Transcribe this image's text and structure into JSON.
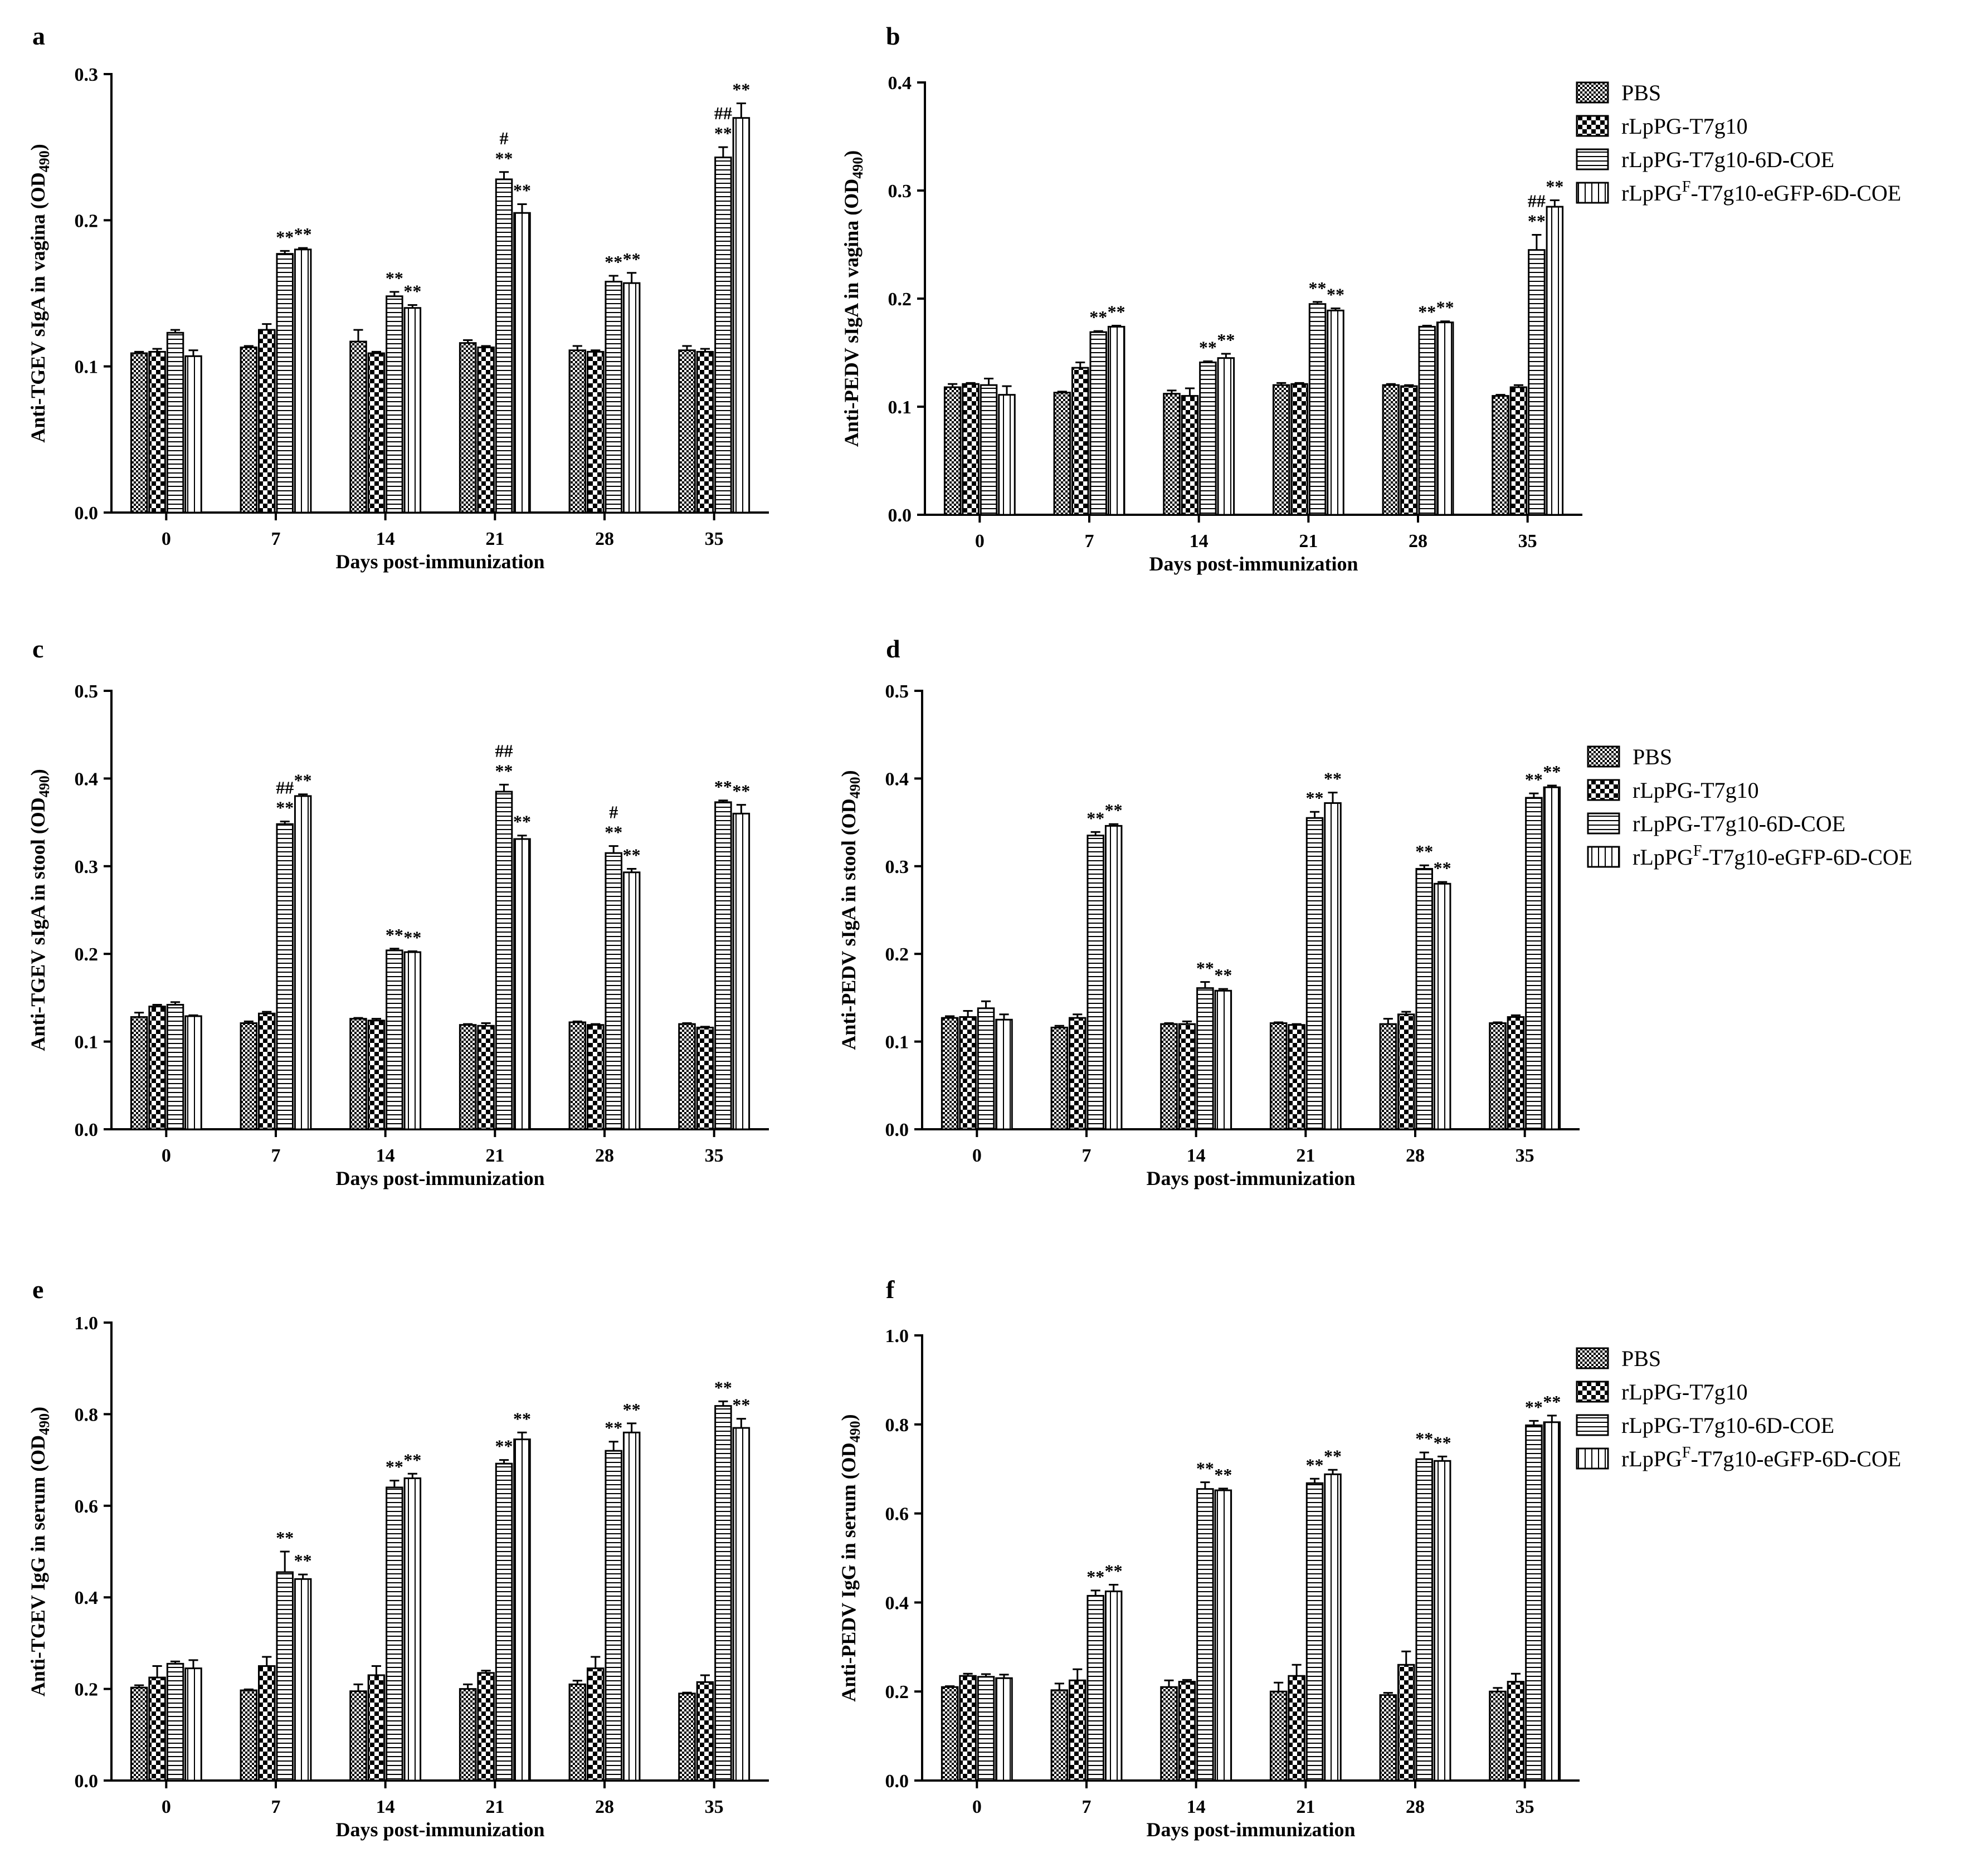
{
  "colors": {
    "axis": "#000000",
    "bar_fill": "#ffffff",
    "bar_stroke": "#000000"
  },
  "legend": {
    "entries": [
      {
        "label": "PBS",
        "pattern": "fine-checker"
      },
      {
        "label": "rLpPG-T7g10",
        "pattern": "coarse-checker"
      },
      {
        "label": "rLpPG-T7g10-6D-COE",
        "pattern": "horizontal-lines"
      },
      {
        "label_main": "rLpPG",
        "label_sup": "F",
        "label_rest": "-T7g10-eGFP-6D-COE",
        "pattern": "vertical-lines"
      }
    ]
  },
  "chart_data": [
    {
      "panel": "a",
      "type": "bar",
      "ylabel_main": "Anti-TGEV sIgA in vagina (OD",
      "ylabel_sub": "490",
      "ylabel_close": ")",
      "xlabel": "Days post-immunization",
      "categories": [
        "0",
        "7",
        "14",
        "21",
        "28",
        "35"
      ],
      "ylim": [
        0,
        0.3
      ],
      "yticks": [
        0.0,
        0.1,
        0.2,
        0.3
      ],
      "ytick_labels": [
        "0.0",
        "0.1",
        "0.2",
        "0.3"
      ],
      "show_legend": false,
      "series": [
        {
          "values": [
            0.109,
            0.113,
            0.117,
            0.116,
            0.111,
            0.111
          ],
          "errors": [
            0.001,
            0.001,
            0.008,
            0.002,
            0.003,
            0.003
          ]
        },
        {
          "values": [
            0.11,
            0.125,
            0.109,
            0.113,
            0.11,
            0.11
          ],
          "errors": [
            0.002,
            0.004,
            0.001,
            0.001,
            0.001,
            0.002
          ]
        },
        {
          "values": [
            0.123,
            0.177,
            0.148,
            0.228,
            0.158,
            0.243
          ],
          "errors": [
            0.002,
            0.002,
            0.003,
            0.005,
            0.004,
            0.007
          ]
        },
        {
          "values": [
            0.107,
            0.18,
            0.14,
            0.205,
            0.157,
            0.27
          ],
          "errors": [
            0.004,
            0.001,
            0.002,
            0.006,
            0.007,
            0.01
          ]
        }
      ],
      "annotations": [
        {
          "category": 1,
          "series": 2,
          "lines": [
            "**"
          ]
        },
        {
          "category": 1,
          "series": 3,
          "lines": [
            "**"
          ]
        },
        {
          "category": 2,
          "series": 2,
          "lines": [
            "**"
          ]
        },
        {
          "category": 2,
          "series": 3,
          "lines": [
            "**"
          ]
        },
        {
          "category": 3,
          "series": 2,
          "lines": [
            "#",
            "**"
          ]
        },
        {
          "category": 3,
          "series": 3,
          "lines": [
            "**"
          ]
        },
        {
          "category": 4,
          "series": 2,
          "lines": [
            "**"
          ]
        },
        {
          "category": 4,
          "series": 3,
          "lines": [
            "**"
          ]
        },
        {
          "category": 5,
          "series": 2,
          "lines": [
            "##",
            "**"
          ]
        },
        {
          "category": 5,
          "series": 3,
          "lines": [
            "**"
          ]
        }
      ]
    },
    {
      "panel": "b",
      "type": "bar",
      "ylabel_main": "Anti-PEDV sIgA in vagina (OD",
      "ylabel_sub": "490",
      "ylabel_close": ")",
      "xlabel": "Days post-immunization",
      "categories": [
        "0",
        "7",
        "14",
        "21",
        "28",
        "35"
      ],
      "ylim": [
        0,
        0.4
      ],
      "yticks": [
        0.0,
        0.1,
        0.2,
        0.3,
        0.4
      ],
      "ytick_labels": [
        "0.0",
        "0.1",
        "0.2",
        "0.3",
        "0.4"
      ],
      "show_legend": true,
      "legend_position": "top-right",
      "series": [
        {
          "values": [
            0.118,
            0.113,
            0.112,
            0.12,
            0.12,
            0.11
          ],
          "errors": [
            0.003,
            0.001,
            0.003,
            0.002,
            0.001,
            0.001
          ]
        },
        {
          "values": [
            0.121,
            0.136,
            0.11,
            0.121,
            0.119,
            0.118
          ],
          "errors": [
            0.001,
            0.005,
            0.007,
            0.001,
            0.001,
            0.002
          ]
        },
        {
          "values": [
            0.12,
            0.169,
            0.141,
            0.195,
            0.174,
            0.245
          ],
          "errors": [
            0.006,
            0.001,
            0.001,
            0.002,
            0.001,
            0.014
          ]
        },
        {
          "values": [
            0.111,
            0.174,
            0.145,
            0.189,
            0.178,
            0.285
          ],
          "errors": [
            0.008,
            0.001,
            0.004,
            0.002,
            0.001,
            0.006
          ]
        }
      ],
      "annotations": [
        {
          "category": 1,
          "series": 2,
          "lines": [
            "**"
          ]
        },
        {
          "category": 1,
          "series": 3,
          "lines": [
            "**"
          ]
        },
        {
          "category": 2,
          "series": 2,
          "lines": [
            "**"
          ]
        },
        {
          "category": 2,
          "series": 3,
          "lines": [
            "**"
          ]
        },
        {
          "category": 3,
          "series": 2,
          "lines": [
            "**"
          ]
        },
        {
          "category": 3,
          "series": 3,
          "lines": [
            "**"
          ]
        },
        {
          "category": 4,
          "series": 2,
          "lines": [
            "**"
          ]
        },
        {
          "category": 4,
          "series": 3,
          "lines": [
            "**"
          ]
        },
        {
          "category": 5,
          "series": 2,
          "lines": [
            "##",
            "**"
          ]
        },
        {
          "category": 5,
          "series": 3,
          "lines": [
            "**"
          ]
        }
      ]
    },
    {
      "panel": "c",
      "type": "bar",
      "ylabel_main": "Anti-TGEV sIgA in stool (OD",
      "ylabel_sub": "490",
      "ylabel_close": ")",
      "xlabel": "Days post-immunization",
      "categories": [
        "0",
        "7",
        "14",
        "21",
        "28",
        "35"
      ],
      "ylim": [
        0,
        0.5
      ],
      "yticks": [
        0.0,
        0.1,
        0.2,
        0.3,
        0.4,
        0.5
      ],
      "ytick_labels": [
        "0.0",
        "0.1",
        "0.2",
        "0.3",
        "0.4",
        "0.5"
      ],
      "show_legend": false,
      "series": [
        {
          "values": [
            0.128,
            0.121,
            0.126,
            0.119,
            0.122,
            0.12
          ],
          "errors": [
            0.005,
            0.002,
            0.001,
            0.001,
            0.001,
            0.001
          ]
        },
        {
          "values": [
            0.14,
            0.132,
            0.124,
            0.118,
            0.119,
            0.116
          ],
          "errors": [
            0.002,
            0.002,
            0.002,
            0.003,
            0.001,
            0.001
          ]
        },
        {
          "values": [
            0.142,
            0.348,
            0.204,
            0.385,
            0.315,
            0.373
          ],
          "errors": [
            0.003,
            0.003,
            0.002,
            0.008,
            0.008,
            0.002
          ]
        },
        {
          "values": [
            0.129,
            0.38,
            0.202,
            0.331,
            0.293,
            0.36
          ],
          "errors": [
            0.001,
            0.002,
            0.001,
            0.004,
            0.004,
            0.01
          ]
        }
      ],
      "annotations": [
        {
          "category": 1,
          "series": 2,
          "lines": [
            "##",
            "**"
          ]
        },
        {
          "category": 1,
          "series": 3,
          "lines": [
            "**"
          ]
        },
        {
          "category": 2,
          "series": 2,
          "lines": [
            "**"
          ]
        },
        {
          "category": 2,
          "series": 3,
          "lines": [
            "**"
          ]
        },
        {
          "category": 3,
          "series": 2,
          "lines": [
            "##",
            "**"
          ]
        },
        {
          "category": 3,
          "series": 3,
          "lines": [
            "**"
          ]
        },
        {
          "category": 4,
          "series": 2,
          "lines": [
            "#",
            "**"
          ]
        },
        {
          "category": 4,
          "series": 3,
          "lines": [
            "**"
          ]
        },
        {
          "category": 5,
          "series": 2,
          "lines": [
            "**"
          ]
        },
        {
          "category": 5,
          "series": 3,
          "lines": [
            "**"
          ]
        }
      ]
    },
    {
      "panel": "d",
      "type": "bar",
      "ylabel_main": "Anti-PEDV sIgA in stool (OD",
      "ylabel_sub": "490",
      "ylabel_close": ")",
      "xlabel": "Days post-immunization",
      "categories": [
        "0",
        "7",
        "14",
        "21",
        "28",
        "35"
      ],
      "ylim": [
        0,
        0.5
      ],
      "yticks": [
        0.0,
        0.1,
        0.2,
        0.3,
        0.4,
        0.5
      ],
      "ytick_labels": [
        "0.0",
        "0.1",
        "0.2",
        "0.3",
        "0.4",
        "0.5"
      ],
      "show_legend": true,
      "legend_position": "top-right",
      "series": [
        {
          "values": [
            0.127,
            0.116,
            0.12,
            0.121,
            0.12,
            0.121
          ],
          "errors": [
            0.002,
            0.002,
            0.001,
            0.001,
            0.006,
            0.001
          ]
        },
        {
          "values": [
            0.128,
            0.127,
            0.12,
            0.119,
            0.131,
            0.128
          ],
          "errors": [
            0.007,
            0.004,
            0.003,
            0.001,
            0.003,
            0.002
          ]
        },
        {
          "values": [
            0.138,
            0.335,
            0.161,
            0.355,
            0.297,
            0.378
          ],
          "errors": [
            0.008,
            0.004,
            0.007,
            0.007,
            0.004,
            0.005
          ]
        },
        {
          "values": [
            0.125,
            0.346,
            0.158,
            0.372,
            0.28,
            0.39
          ],
          "errors": [
            0.006,
            0.002,
            0.002,
            0.012,
            0.002,
            0.002
          ]
        }
      ],
      "annotations": [
        {
          "category": 1,
          "series": 2,
          "lines": [
            "**"
          ]
        },
        {
          "category": 1,
          "series": 3,
          "lines": [
            "**"
          ]
        },
        {
          "category": 2,
          "series": 2,
          "lines": [
            "**"
          ]
        },
        {
          "category": 2,
          "series": 3,
          "lines": [
            "**"
          ]
        },
        {
          "category": 3,
          "series": 2,
          "lines": [
            "**"
          ]
        },
        {
          "category": 3,
          "series": 3,
          "lines": [
            "**"
          ]
        },
        {
          "category": 4,
          "series": 2,
          "lines": [
            "**"
          ]
        },
        {
          "category": 4,
          "series": 3,
          "lines": [
            "**"
          ]
        },
        {
          "category": 5,
          "series": 2,
          "lines": [
            "**"
          ]
        },
        {
          "category": 5,
          "series": 3,
          "lines": [
            "**"
          ]
        }
      ]
    },
    {
      "panel": "e",
      "type": "bar",
      "ylabel_main": "Anti-TGEV IgG in serum (OD",
      "ylabel_sub": "490",
      "ylabel_close": ")",
      "xlabel": "Days post-immunization",
      "categories": [
        "0",
        "7",
        "14",
        "21",
        "28",
        "35"
      ],
      "ylim": [
        0,
        1.0
      ],
      "yticks": [
        0.0,
        0.2,
        0.4,
        0.6,
        0.8,
        1.0
      ],
      "ytick_labels": [
        "0.0",
        "0.2",
        "0.4",
        "0.6",
        "0.8",
        "1.0"
      ],
      "show_legend": false,
      "series": [
        {
          "values": [
            0.203,
            0.197,
            0.195,
            0.2,
            0.21,
            0.19
          ],
          "errors": [
            0.005,
            0.002,
            0.015,
            0.01,
            0.008,
            0.002
          ]
        },
        {
          "values": [
            0.225,
            0.25,
            0.23,
            0.235,
            0.245,
            0.215
          ],
          "errors": [
            0.025,
            0.02,
            0.02,
            0.005,
            0.025,
            0.015
          ]
        },
        {
          "values": [
            0.255,
            0.455,
            0.64,
            0.692,
            0.72,
            0.818
          ],
          "errors": [
            0.005,
            0.045,
            0.015,
            0.008,
            0.02,
            0.01
          ]
        },
        {
          "values": [
            0.245,
            0.44,
            0.66,
            0.745,
            0.76,
            0.77
          ],
          "errors": [
            0.018,
            0.01,
            0.01,
            0.015,
            0.02,
            0.02
          ]
        }
      ],
      "annotations": [
        {
          "category": 1,
          "series": 2,
          "lines": [
            "**"
          ]
        },
        {
          "category": 1,
          "series": 3,
          "lines": [
            "**"
          ]
        },
        {
          "category": 2,
          "series": 2,
          "lines": [
            "**"
          ]
        },
        {
          "category": 2,
          "series": 3,
          "lines": [
            "**"
          ]
        },
        {
          "category": 3,
          "series": 2,
          "lines": [
            "**"
          ]
        },
        {
          "category": 3,
          "series": 3,
          "lines": [
            "**"
          ]
        },
        {
          "category": 4,
          "series": 2,
          "lines": [
            "**"
          ]
        },
        {
          "category": 4,
          "series": 3,
          "lines": [
            "**"
          ]
        },
        {
          "category": 5,
          "series": 2,
          "lines": [
            "**"
          ]
        },
        {
          "category": 5,
          "series": 3,
          "lines": [
            "**"
          ]
        }
      ]
    },
    {
      "panel": "f",
      "type": "bar",
      "ylabel_main": "Anti-PEDV IgG in serum (OD",
      "ylabel_sub": "490",
      "ylabel_close": ")",
      "xlabel": "Days post-immunization",
      "categories": [
        "0",
        "7",
        "14",
        "21",
        "28",
        "35"
      ],
      "ylim": [
        0,
        1.0
      ],
      "yticks": [
        0.0,
        0.2,
        0.4,
        0.6,
        0.8,
        1.0
      ],
      "ytick_labels": [
        "0.0",
        "0.2",
        "0.4",
        "0.6",
        "0.8",
        "1.0"
      ],
      "show_legend": true,
      "legend_position": "top-right",
      "series": [
        {
          "values": [
            0.21,
            0.203,
            0.21,
            0.2,
            0.192,
            0.2
          ],
          "errors": [
            0.002,
            0.015,
            0.015,
            0.02,
            0.005,
            0.008
          ]
        },
        {
          "values": [
            0.235,
            0.225,
            0.222,
            0.235,
            0.26,
            0.222
          ],
          "errors": [
            0.005,
            0.025,
            0.004,
            0.025,
            0.03,
            0.018
          ]
        },
        {
          "values": [
            0.233,
            0.415,
            0.655,
            0.668,
            0.722,
            0.798
          ],
          "errors": [
            0.006,
            0.012,
            0.015,
            0.01,
            0.015,
            0.01
          ]
        },
        {
          "values": [
            0.23,
            0.425,
            0.652,
            0.688,
            0.718,
            0.805
          ],
          "errors": [
            0.008,
            0.015,
            0.004,
            0.01,
            0.01,
            0.015
          ]
        }
      ],
      "annotations": [
        {
          "category": 1,
          "series": 2,
          "lines": [
            "**"
          ]
        },
        {
          "category": 1,
          "series": 3,
          "lines": [
            "**"
          ]
        },
        {
          "category": 2,
          "series": 2,
          "lines": [
            "**"
          ]
        },
        {
          "category": 2,
          "series": 3,
          "lines": [
            "**"
          ]
        },
        {
          "category": 3,
          "series": 2,
          "lines": [
            "**"
          ]
        },
        {
          "category": 3,
          "series": 3,
          "lines": [
            "**"
          ]
        },
        {
          "category": 4,
          "series": 2,
          "lines": [
            "**"
          ]
        },
        {
          "category": 4,
          "series": 3,
          "lines": [
            "**"
          ]
        },
        {
          "category": 5,
          "series": 2,
          "lines": [
            "**"
          ]
        },
        {
          "category": 5,
          "series": 3,
          "lines": [
            "**"
          ]
        }
      ]
    }
  ]
}
